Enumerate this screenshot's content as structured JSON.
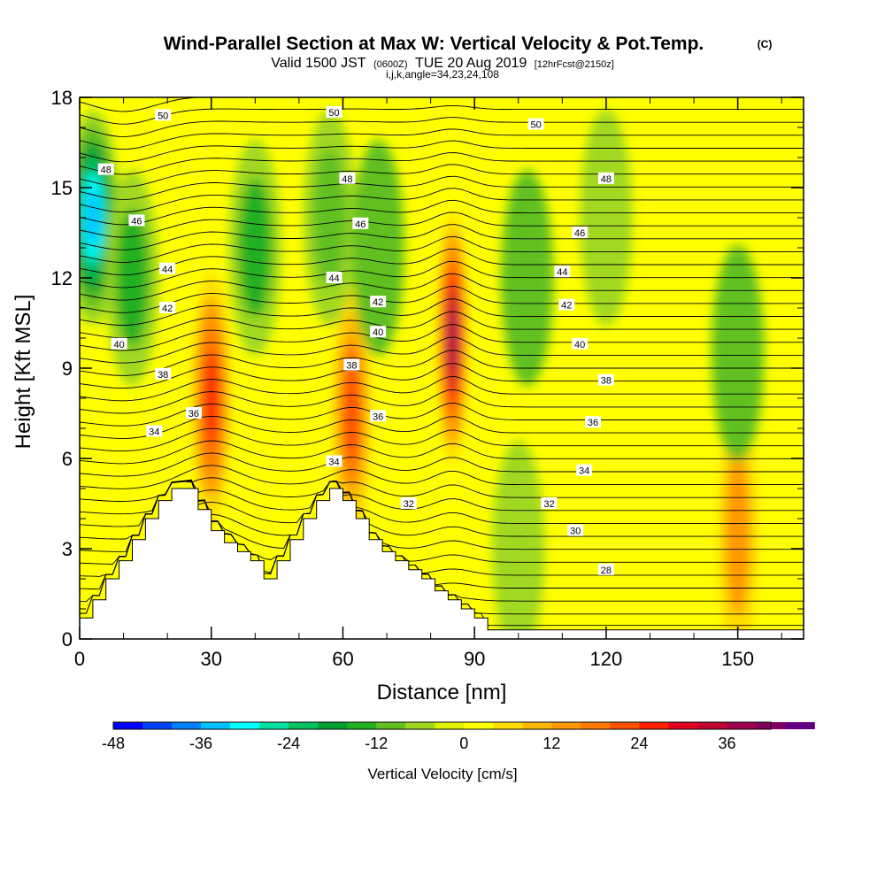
{
  "header": {
    "title": "Wind-Parallel Section at Max W: Vertical Velocity & Pot.Temp.",
    "title_mark": "(C)",
    "subtitle_prefix": "Valid 1500 JST",
    "subtitle_utc": "(0600Z)",
    "subtitle_date": "TUE 20 Aug 2019",
    "subtitle_fcst": "[12hrFcst@2150z]",
    "params": "i,j,k,angle=34,23,24,108"
  },
  "chart_data": {
    "type": "heatmap",
    "title": "Wind-Parallel Section at Max W: Vertical Velocity & Pot.Temp.",
    "xlabel": "Distance [nm]",
    "ylabel": "Height [Kft MSL]",
    "xlim": [
      0,
      165
    ],
    "ylim": [
      0,
      18
    ],
    "x_ticks": [
      0,
      30,
      60,
      90,
      120,
      150
    ],
    "x_ticklabels": [
      "0",
      "30",
      "60",
      "90",
      "120",
      "150"
    ],
    "y_ticks": [
      0,
      3,
      6,
      9,
      12,
      15,
      18
    ],
    "y_ticklabels": [
      "0",
      "3",
      "6",
      "9",
      "12",
      "15",
      "18"
    ],
    "colorbar": {
      "label": "Vertical Velocity [cm/s]",
      "min": -48,
      "max": 42,
      "step": 4,
      "ticks": [
        -48,
        -36,
        -24,
        -12,
        0,
        12,
        24,
        36
      ],
      "ticklabels": [
        "-48",
        "-36",
        "-24",
        "-12",
        "0",
        "12",
        "24",
        "36"
      ],
      "colors": [
        "#0000ff",
        "#0040ff",
        "#0080ff",
        "#00c0ff",
        "#00ffff",
        "#00e0a0",
        "#00c060",
        "#00a030",
        "#20b020",
        "#60c020",
        "#a0d820",
        "#e0f000",
        "#ffff00",
        "#ffdc00",
        "#ffb800",
        "#ff9800",
        "#ff7800",
        "#ff5000",
        "#ff2000",
        "#e00020",
        "#c00030",
        "#a00050",
        "#800060",
        "#600080"
      ]
    },
    "vertical_velocity_features": [
      {
        "kind": "updraft",
        "x": 30,
        "y": 8,
        "peak": 26
      },
      {
        "kind": "updraft",
        "x": 62,
        "y": 7.5,
        "peak": 24
      },
      {
        "kind": "updraft",
        "x": 85,
        "y": 10,
        "peak": 40
      },
      {
        "kind": "updraft",
        "x": 150,
        "y": 3.5,
        "peak": 14
      },
      {
        "kind": "downdraft",
        "x": 3,
        "y": 14,
        "peak": -36
      },
      {
        "kind": "downdraft",
        "x": 12,
        "y": 12,
        "peak": -14
      },
      {
        "kind": "downdraft",
        "x": 40,
        "y": 13,
        "peak": -14
      },
      {
        "kind": "downdraft",
        "x": 57,
        "y": 14,
        "peak": -12
      },
      {
        "kind": "downdraft",
        "x": 68,
        "y": 13,
        "peak": -10
      },
      {
        "kind": "downdraft",
        "x": 102,
        "y": 12,
        "peak": -10
      },
      {
        "kind": "downdraft",
        "x": 150,
        "y": 9.5,
        "peak": -10
      },
      {
        "kind": "downdraft",
        "x": 100,
        "y": 3,
        "peak": -6
      },
      {
        "kind": "downdraft",
        "x": 120,
        "y": 14,
        "peak": -6
      }
    ],
    "theta_contour_labels": [
      {
        "value": "50",
        "x": 19,
        "y": 17.4
      },
      {
        "value": "48",
        "x": 6,
        "y": 15.6
      },
      {
        "value": "46",
        "x": 13,
        "y": 13.9
      },
      {
        "value": "44",
        "x": 20,
        "y": 12.3
      },
      {
        "value": "42",
        "x": 20,
        "y": 11.0
      },
      {
        "value": "40",
        "x": 9,
        "y": 9.8
      },
      {
        "value": "38",
        "x": 19,
        "y": 8.8
      },
      {
        "value": "36",
        "x": 26,
        "y": 7.5
      },
      {
        "value": "34",
        "x": 17,
        "y": 6.9
      },
      {
        "value": "50",
        "x": 58,
        "y": 17.5
      },
      {
        "value": "48",
        "x": 61,
        "y": 15.3
      },
      {
        "value": "46",
        "x": 64,
        "y": 13.8
      },
      {
        "value": "44",
        "x": 58,
        "y": 12.0
      },
      {
        "value": "42",
        "x": 68,
        "y": 11.2
      },
      {
        "value": "40",
        "x": 68,
        "y": 10.2
      },
      {
        "value": "38",
        "x": 62,
        "y": 9.1
      },
      {
        "value": "36",
        "x": 68,
        "y": 7.4
      },
      {
        "value": "34",
        "x": 58,
        "y": 5.9
      },
      {
        "value": "32",
        "x": 75,
        "y": 4.5
      },
      {
        "value": "50",
        "x": 104,
        "y": 17.1
      },
      {
        "value": "48",
        "x": 120,
        "y": 15.3
      },
      {
        "value": "46",
        "x": 114,
        "y": 13.5
      },
      {
        "value": "44",
        "x": 110,
        "y": 12.2
      },
      {
        "value": "42",
        "x": 111,
        "y": 11.1
      },
      {
        "value": "40",
        "x": 114,
        "y": 9.8
      },
      {
        "value": "38",
        "x": 120,
        "y": 8.6
      },
      {
        "value": "36",
        "x": 117,
        "y": 7.2
      },
      {
        "value": "34",
        "x": 115,
        "y": 5.6
      },
      {
        "value": "32",
        "x": 107,
        "y": 4.5
      },
      {
        "value": "30",
        "x": 113,
        "y": 3.6
      },
      {
        "value": "28",
        "x": 120,
        "y": 2.3
      }
    ],
    "terrain_description": "white terrain blocks with stepped peaks near x=25 and x=58, rising to about 5 kft",
    "grid": false
  }
}
